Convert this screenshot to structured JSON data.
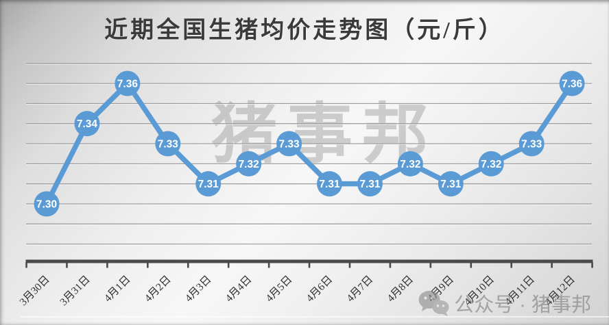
{
  "title": "近期全国生猪均价走势图（元/斤）",
  "watermarks": {
    "center": "猪事邦",
    "bottom_right": "公众号 · 猪事邦"
  },
  "colors": {
    "series": "#5B9BD5",
    "marker_label": "#FFFFFF",
    "gridline": "#9F9F9F",
    "gridline_highlight": "rgba(255,255,255,0.6)",
    "axis": "#4A4A4A",
    "title_text": "#3A3A3A",
    "watermark": "#8E8E8E"
  },
  "chart_data": {
    "type": "line",
    "title": "近期全国生猪均价走势图（元/斤）",
    "xlabel": "",
    "ylabel": "",
    "categories": [
      "3月30日",
      "3月31日",
      "4月1日",
      "4月2日",
      "4月3日",
      "4月4日",
      "4月5日",
      "4月6日",
      "4月7日",
      "4月8日",
      "4月9日",
      "4月10日",
      "4月11日",
      "4月12日"
    ],
    "values": [
      7.3,
      7.34,
      7.36,
      7.33,
      7.31,
      7.32,
      7.33,
      7.31,
      7.31,
      7.32,
      7.31,
      7.32,
      7.33,
      7.36
    ],
    "data_labels": [
      "7.30",
      "7.34",
      "7.36",
      "7.33",
      "7.31",
      "7.32",
      "7.33",
      "7.31",
      "7.31",
      "7.32",
      "7.31",
      "7.32",
      "7.33",
      "7.36"
    ],
    "ylim": [
      7.27,
      7.375
    ],
    "gridline_values": [
      7.28,
      7.29,
      7.3,
      7.31,
      7.32,
      7.33,
      7.34,
      7.35,
      7.36,
      7.37
    ],
    "grid": true,
    "legend": false,
    "marker": "circle-filled",
    "data_label_position": "center",
    "x_tick_rotation": -45
  }
}
